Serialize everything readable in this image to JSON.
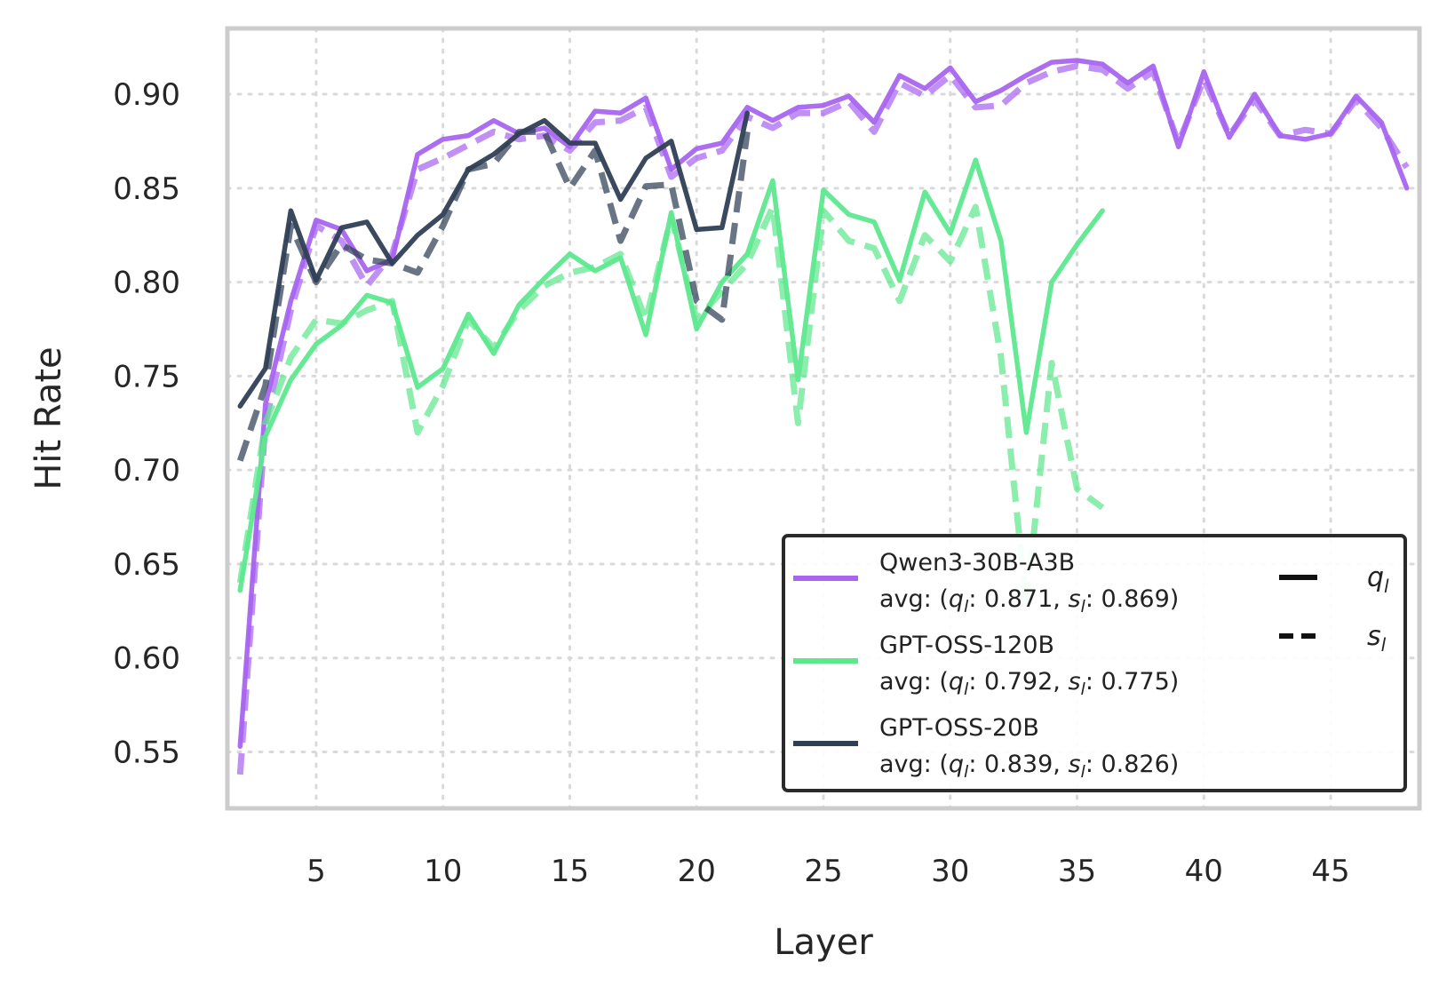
{
  "chart_data": {
    "type": "line",
    "title": "",
    "xlabel": "Layer",
    "ylabel": "Hit Rate",
    "xlim": [
      1.5,
      48.5
    ],
    "ylim": [
      0.52,
      0.935
    ],
    "xticks": [
      5,
      10,
      15,
      20,
      25,
      30,
      35,
      40,
      45
    ],
    "xtick_labels": [
      "5",
      "10",
      "15",
      "20",
      "25",
      "30",
      "35",
      "40",
      "45"
    ],
    "yticks": [
      0.55,
      0.6,
      0.65,
      0.7,
      0.75,
      0.8,
      0.85,
      0.9
    ],
    "ytick_labels": [
      "0.55",
      "0.60",
      "0.65",
      "0.70",
      "0.75",
      "0.80",
      "0.85",
      "0.90"
    ],
    "grid": true,
    "legend_position": "lower-right",
    "style_legend": [
      {
        "symbol": "q",
        "subscript": "l",
        "linestyle": "solid"
      },
      {
        "symbol": "s",
        "subscript": "l",
        "linestyle": "dashed"
      }
    ],
    "series": [
      {
        "name": "Qwen3-30B-A3B",
        "avg_label": " avg: (q_l: 0.871, s_l: 0.869)",
        "avg_parts": {
          "prefix": " avg: (",
          "q": "q",
          "q_sub": "l",
          "q_val": ": 0.871, ",
          "s": "s",
          "s_sub": "l",
          "s_val": ": 0.869)"
        },
        "color": "#A865F0",
        "x": [
          2,
          3,
          4,
          5,
          6,
          7,
          8,
          9,
          10,
          11,
          12,
          13,
          14,
          15,
          16,
          17,
          18,
          19,
          20,
          21,
          22,
          23,
          24,
          25,
          26,
          27,
          28,
          29,
          30,
          31,
          32,
          33,
          34,
          35,
          36,
          37,
          38,
          39,
          40,
          41,
          42,
          43,
          44,
          45,
          46,
          47,
          48
        ],
        "q": [
          0.553,
          0.735,
          0.79,
          0.833,
          0.828,
          0.806,
          0.812,
          0.868,
          0.876,
          0.878,
          0.886,
          0.879,
          0.882,
          0.872,
          0.891,
          0.89,
          0.898,
          0.86,
          0.871,
          0.874,
          0.893,
          0.886,
          0.893,
          0.894,
          0.899,
          0.885,
          0.91,
          0.903,
          0.914,
          0.896,
          0.902,
          0.91,
          0.917,
          0.918,
          0.916,
          0.906,
          0.915,
          0.872,
          0.912,
          0.877,
          0.9,
          0.878,
          0.876,
          0.879,
          0.899,
          0.885,
          0.85
        ],
        "s": [
          0.538,
          0.725,
          0.785,
          0.83,
          0.822,
          0.798,
          0.815,
          0.86,
          0.866,
          0.873,
          0.88,
          0.876,
          0.878,
          0.87,
          0.885,
          0.886,
          0.893,
          0.856,
          0.866,
          0.87,
          0.888,
          0.882,
          0.89,
          0.89,
          0.896,
          0.88,
          0.906,
          0.899,
          0.91,
          0.893,
          0.894,
          0.906,
          0.912,
          0.915,
          0.913,
          0.903,
          0.912,
          0.874,
          0.908,
          0.878,
          0.897,
          0.878,
          0.881,
          0.879,
          0.897,
          0.882,
          0.861
        ]
      },
      {
        "name": "GPT-OSS-120B",
        "avg_label": " avg: (q_l: 0.792, s_l: 0.775)",
        "avg_parts": {
          "prefix": " avg: (",
          "q": "q",
          "q_sub": "l",
          "q_val": ": 0.792, ",
          "s": "s",
          "s_sub": "l",
          "s_val": ": 0.775)"
        },
        "color": "#5EE88E",
        "x": [
          2,
          3,
          4,
          5,
          6,
          7,
          8,
          9,
          10,
          11,
          12,
          13,
          14,
          15,
          16,
          17,
          18,
          19,
          20,
          21,
          22,
          23,
          24,
          25,
          26,
          27,
          28,
          29,
          30,
          31,
          32,
          33,
          34,
          35,
          36
        ],
        "q": [
          0.636,
          0.718,
          0.748,
          0.767,
          0.777,
          0.793,
          0.789,
          0.744,
          0.754,
          0.783,
          0.762,
          0.788,
          0.802,
          0.815,
          0.806,
          0.813,
          0.772,
          0.837,
          0.775,
          0.8,
          0.815,
          0.854,
          0.748,
          0.849,
          0.836,
          0.832,
          0.801,
          0.848,
          0.826,
          0.865,
          0.822,
          0.72,
          0.8,
          0.82,
          0.838
        ],
        "s": [
          0.64,
          0.725,
          0.76,
          0.78,
          0.778,
          0.785,
          0.79,
          0.72,
          0.745,
          0.78,
          0.765,
          0.785,
          0.798,
          0.805,
          0.808,
          0.815,
          0.78,
          0.835,
          0.78,
          0.795,
          0.81,
          0.84,
          0.725,
          0.838,
          0.822,
          0.818,
          0.79,
          0.825,
          0.811,
          0.84,
          0.76,
          0.628,
          0.757,
          0.69,
          0.68
        ]
      },
      {
        "name": "GPT-OSS-20B",
        "avg_label": " avg: (q_l: 0.839, s_l: 0.826)",
        "avg_parts": {
          "prefix": " avg: (",
          "q": "q",
          "q_sub": "l",
          "q_val": ": 0.839, ",
          "s": "s",
          "s_sub": "l",
          "s_val": ": 0.826)"
        },
        "color": "#2F3F55",
        "x": [
          2,
          3,
          4,
          5,
          6,
          7,
          8,
          9,
          10,
          11,
          12,
          13,
          14,
          15,
          16,
          17,
          18,
          19,
          20,
          21,
          22
        ],
        "q": [
          0.734,
          0.754,
          0.838,
          0.801,
          0.829,
          0.832,
          0.81,
          0.825,
          0.836,
          0.86,
          0.868,
          0.879,
          0.886,
          0.874,
          0.874,
          0.844,
          0.866,
          0.875,
          0.828,
          0.829,
          0.89
        ],
        "s": [
          0.705,
          0.745,
          0.83,
          0.8,
          0.82,
          0.812,
          0.81,
          0.805,
          0.83,
          0.86,
          0.863,
          0.88,
          0.88,
          0.85,
          0.87,
          0.822,
          0.851,
          0.852,
          0.79,
          0.78,
          0.88
        ]
      }
    ]
  }
}
